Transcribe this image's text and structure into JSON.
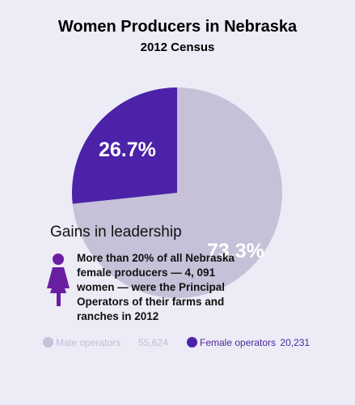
{
  "chart_data": {
    "type": "pie",
    "title": "Women Producers in Nebraska",
    "subtitle": "2012 Census",
    "series": [
      {
        "name": "Male operators",
        "value": 55624,
        "percent_label": "73.3%",
        "color": "#c6c1d8"
      },
      {
        "name": "Female operators",
        "value": 20231,
        "percent_label": "26.7%",
        "color": "#4b22a8"
      }
    ],
    "legend_placement": "bottom"
  },
  "annotation": {
    "heading": "Gains in leadership",
    "text": "More than 20%  of all Nebraska female producers — 4, 091 women — were the Principal Operators of their farms and ranches in 2012",
    "icon": "woman-icon"
  },
  "legend": {
    "male_label": "Male operators",
    "male_value": "55,624",
    "female_label": "Female operators",
    "female_value": "20,231"
  }
}
